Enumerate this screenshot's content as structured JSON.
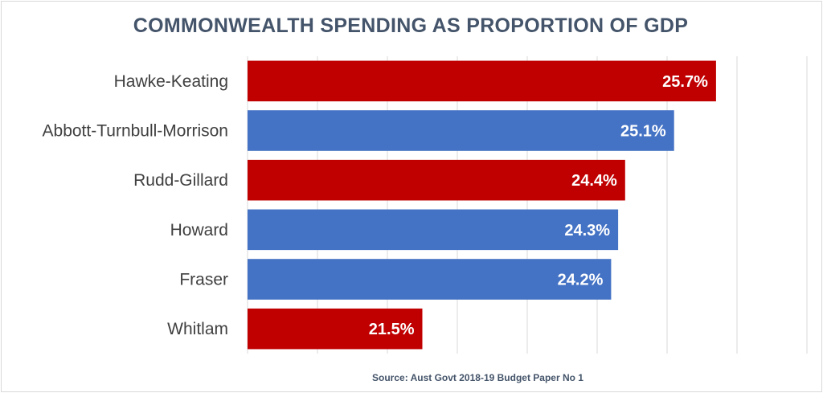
{
  "chart_data": {
    "type": "bar",
    "orientation": "horizontal",
    "title": "COMMONWEALTH SPENDING AS PROPORTION OF GDP",
    "source": "Source: Aust Govt 2018-19 Budget Paper No 1",
    "categories": [
      "Hawke-Keating",
      "Abbott-Turnbull-Morrison",
      "Rudd-Gillard",
      "Howard",
      "Fraser",
      "Whitlam"
    ],
    "values": [
      25.7,
      25.1,
      24.4,
      24.3,
      24.2,
      21.5
    ],
    "value_labels": [
      "25.7%",
      "25.1%",
      "24.4%",
      "24.3%",
      "24.2%",
      "21.5%"
    ],
    "bar_colors": [
      "#c00000",
      "#4472c4",
      "#c00000",
      "#4472c4",
      "#4472c4",
      "#c00000"
    ],
    "xlim": [
      19,
      27
    ],
    "grid": true,
    "xlabel": "",
    "ylabel": ""
  }
}
